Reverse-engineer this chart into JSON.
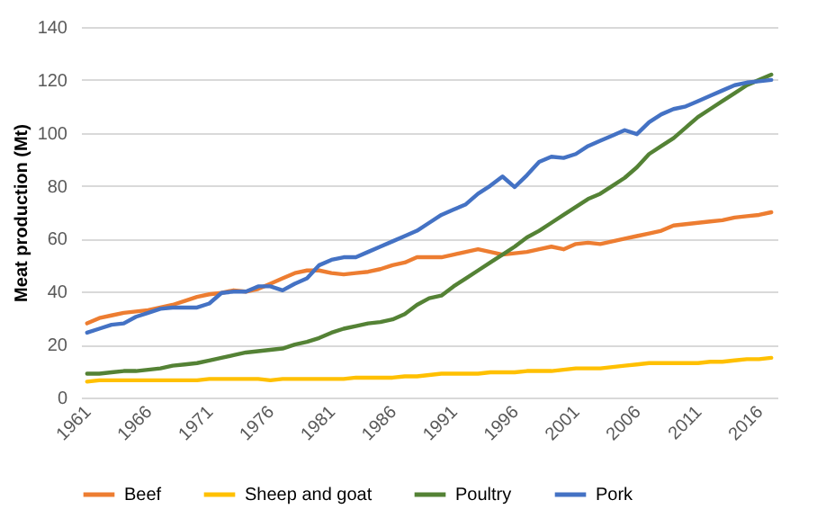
{
  "chart_data": {
    "type": "line",
    "ylabel": "Meat production (Mt)",
    "x": [
      1961,
      1962,
      1963,
      1964,
      1965,
      1966,
      1967,
      1968,
      1969,
      1970,
      1971,
      1972,
      1973,
      1974,
      1975,
      1976,
      1977,
      1978,
      1979,
      1980,
      1981,
      1982,
      1983,
      1984,
      1985,
      1986,
      1987,
      1988,
      1989,
      1990,
      1991,
      1992,
      1993,
      1994,
      1995,
      1996,
      1997,
      1998,
      1999,
      2000,
      2001,
      2002,
      2003,
      2004,
      2005,
      2006,
      2007,
      2008,
      2009,
      2010,
      2011,
      2012,
      2013,
      2014,
      2015,
      2016,
      2017
    ],
    "xlim": [
      1960.5,
      2017.5
    ],
    "xticks": [
      1961,
      1966,
      1971,
      1976,
      1981,
      1986,
      1991,
      1996,
      2001,
      2006,
      2011,
      2016
    ],
    "ylim": [
      0,
      140
    ],
    "yticks": [
      0,
      20,
      40,
      60,
      80,
      100,
      120,
      140
    ],
    "grid": "y",
    "legend": "bottom",
    "line_style": "solid",
    "series": [
      {
        "name": "Beef",
        "color": "#ed7d31",
        "values": [
          28,
          30,
          31,
          32,
          32.5,
          33,
          34,
          35,
          36.5,
          38,
          39,
          39.5,
          40.5,
          40,
          41,
          43,
          45,
          47,
          48,
          48,
          47,
          46.5,
          47,
          47.5,
          48.5,
          50,
          51,
          53,
          53,
          53,
          54,
          55,
          56,
          55,
          54,
          54.5,
          55,
          56,
          57,
          56,
          58,
          58.5,
          58,
          59,
          60,
          61,
          62,
          63,
          65,
          65.5,
          66,
          66.5,
          67,
          68,
          68.5,
          69,
          70
        ]
      },
      {
        "name": "Sheep and goat",
        "color": "#ffc000",
        "values": [
          6,
          6.5,
          6.5,
          6.5,
          6.5,
          6.5,
          6.5,
          6.5,
          6.5,
          6.5,
          7,
          7,
          7,
          7,
          7,
          6.5,
          7,
          7,
          7,
          7,
          7,
          7,
          7.5,
          7.5,
          7.5,
          7.5,
          8,
          8,
          8.5,
          9,
          9,
          9,
          9,
          9.5,
          9.5,
          9.5,
          10,
          10,
          10,
          10.5,
          11,
          11,
          11,
          11.5,
          12,
          12.5,
          13,
          13,
          13,
          13,
          13,
          13.5,
          13.5,
          14,
          14.5,
          14.5,
          15
        ]
      },
      {
        "name": "Poultry",
        "color": "#548235",
        "values": [
          9,
          9,
          9.5,
          10,
          10,
          10.5,
          11,
          12,
          12.5,
          13,
          14,
          15,
          16,
          17,
          17.5,
          18,
          18.5,
          20,
          21,
          22.5,
          24.5,
          26,
          27,
          28,
          28.5,
          29.5,
          31.5,
          35,
          37.5,
          38.5,
          42,
          45,
          48,
          51,
          54,
          57,
          60.5,
          63,
          66,
          69,
          72,
          75,
          77,
          80,
          83,
          87,
          92,
          95,
          98,
          102,
          106,
          109,
          112,
          115,
          118,
          120,
          122
        ]
      },
      {
        "name": "Pork",
        "color": "#4472c4",
        "values": [
          24.5,
          26,
          27.5,
          28,
          30.5,
          32,
          33.5,
          34,
          34,
          34,
          35.5,
          39.5,
          40,
          40,
          42,
          42,
          40.5,
          43,
          45,
          50,
          52,
          53,
          53,
          55,
          57,
          59,
          61,
          63,
          66,
          69,
          71,
          73,
          77,
          80,
          83.5,
          79.5,
          84,
          89,
          91,
          90.5,
          92,
          95,
          97,
          99,
          101,
          99.5,
          104,
          107,
          109,
          110,
          112,
          114,
          116,
          118,
          119,
          119.5,
          120
        ]
      }
    ]
  }
}
